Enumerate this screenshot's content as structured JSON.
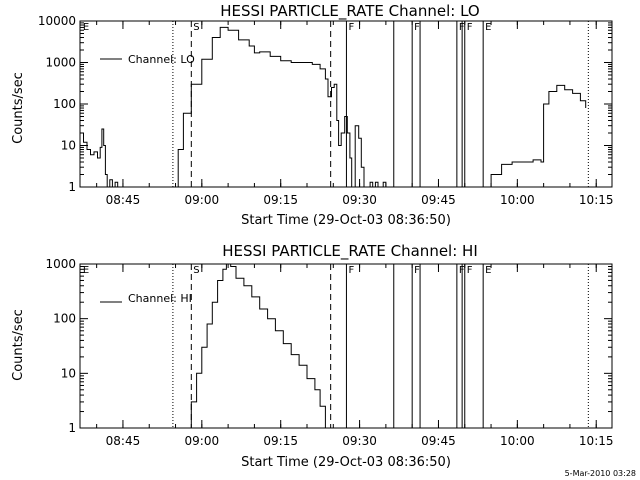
{
  "footer": {
    "stamp": "5-Mar-2010 03:28"
  },
  "chart_data": [
    {
      "type": "line",
      "title": "HESSI PARTICLE_RATE Channel: LO",
      "xlabel": "Start Time (29-Oct-03 08:36:50)",
      "ylabel": "Counts/sec",
      "yscale": "log",
      "xlim": [
        "08:36:50",
        "10:18:00"
      ],
      "ylim": [
        1,
        10000
      ],
      "x_ticks": [
        "08:45",
        "09:00",
        "09:15",
        "09:30",
        "09:45",
        "10:00",
        "10:15"
      ],
      "y_ticks": [
        "1",
        "10",
        "100",
        "1000",
        "10000"
      ],
      "legend": {
        "label": "Channel: LO",
        "placement": "top-left"
      },
      "markers": [
        {
          "label": "E",
          "time": "08:37:00",
          "style": "text"
        },
        {
          "label": "",
          "time": "08:54:30",
          "style": "dotted"
        },
        {
          "label": "S",
          "time": "08:58:00",
          "style": "dashed"
        },
        {
          "label": "",
          "time": "09:24:30",
          "style": "dashed"
        },
        {
          "label": "F",
          "time": "09:27:30",
          "style": "solid"
        },
        {
          "label": "",
          "time": "09:36:30",
          "style": "solid"
        },
        {
          "label": "F",
          "time": "09:40:00",
          "style": "solid"
        },
        {
          "label": "",
          "time": "09:41:30",
          "style": "solid"
        },
        {
          "label": "F",
          "time": "09:48:30",
          "style": "solid"
        },
        {
          "label": "",
          "time": "09:49:30",
          "style": "solid"
        },
        {
          "label": "F",
          "time": "09:50:00",
          "style": "solid"
        },
        {
          "label": "E",
          "time": "09:53:30",
          "style": "solid"
        },
        {
          "label": "",
          "time": "10:13:30",
          "style": "dotted"
        }
      ],
      "series": [
        {
          "values": [
            {
              "x": "08:36:50",
              "y": 20
            },
            {
              "x": "08:37:30",
              "y": 12
            },
            {
              "x": "08:38:10",
              "y": 8
            },
            {
              "x": "08:38:50",
              "y": 6
            },
            {
              "x": "08:39:30",
              "y": 7
            },
            {
              "x": "08:40:10",
              "y": 5
            },
            {
              "x": "08:40:40",
              "y": 9
            },
            {
              "x": "08:41:00",
              "y": 25
            },
            {
              "x": "08:41:20",
              "y": 10
            },
            {
              "x": "08:41:40",
              "y": 2
            },
            {
              "x": "08:42:00",
              "y": 1
            },
            {
              "x": "08:42:30",
              "y": 1.5
            },
            {
              "x": "08:43:00",
              "y": 1
            },
            {
              "x": "08:43:30",
              "y": 1.3
            },
            {
              "x": "08:44:00",
              "y": 1
            },
            {
              "x": "08:54:30",
              "y": 1
            },
            {
              "x": "08:55:30",
              "y": 8
            },
            {
              "x": "08:56:30",
              "y": 60
            },
            {
              "x": "08:58:00",
              "y": 300
            },
            {
              "x": "09:00:00",
              "y": 1200
            },
            {
              "x": "09:02:00",
              "y": 4000
            },
            {
              "x": "09:03:30",
              "y": 7000
            },
            {
              "x": "09:05:00",
              "y": 6000
            },
            {
              "x": "09:07:00",
              "y": 3500
            },
            {
              "x": "09:09:00",
              "y": 2500
            },
            {
              "x": "09:10:00",
              "y": 1700
            },
            {
              "x": "09:11:00",
              "y": 1800
            },
            {
              "x": "09:13:00",
              "y": 1400
            },
            {
              "x": "09:15:00",
              "y": 1100
            },
            {
              "x": "09:17:00",
              "y": 1000
            },
            {
              "x": "09:19:00",
              "y": 1000
            },
            {
              "x": "09:21:00",
              "y": 900
            },
            {
              "x": "09:22:30",
              "y": 700
            },
            {
              "x": "09:23:30",
              "y": 400
            },
            {
              "x": "09:24:00",
              "y": 150
            },
            {
              "x": "09:24:40",
              "y": 250
            },
            {
              "x": "09:25:10",
              "y": 300
            },
            {
              "x": "09:25:40",
              "y": 40
            },
            {
              "x": "09:26:00",
              "y": 10
            },
            {
              "x": "09:26:30",
              "y": 20
            },
            {
              "x": "09:27:10",
              "y": 50
            },
            {
              "x": "09:27:40",
              "y": 20
            },
            {
              "x": "09:28:10",
              "y": 5
            },
            {
              "x": "09:28:30",
              "y": 1
            },
            {
              "x": "09:29:10",
              "y": 30
            },
            {
              "x": "09:29:50",
              "y": 15
            },
            {
              "x": "09:30:20",
              "y": 3
            },
            {
              "x": "09:30:50",
              "y": 1
            },
            {
              "x": "09:32:00",
              "y": 1.3
            },
            {
              "x": "09:32:30",
              "y": 1
            },
            {
              "x": "09:33:00",
              "y": 1.3
            },
            {
              "x": "09:33:30",
              "y": 1
            },
            {
              "x": "09:34:30",
              "y": 1.3
            },
            {
              "x": "09:35:00",
              "y": 1
            },
            {
              "x": "09:54:00",
              "y": 1
            },
            {
              "x": "09:55:00",
              "y": 2
            },
            {
              "x": "09:57:00",
              "y": 3.5
            },
            {
              "x": "09:59:00",
              "y": 4
            },
            {
              "x": "10:01:00",
              "y": 4
            },
            {
              "x": "10:03:00",
              "y": 4.5
            },
            {
              "x": "10:04:30",
              "y": 4
            },
            {
              "x": "10:05:00",
              "y": 100
            },
            {
              "x": "10:06:00",
              "y": 200
            },
            {
              "x": "10:07:30",
              "y": 280
            },
            {
              "x": "10:09:00",
              "y": 220
            },
            {
              "x": "10:10:30",
              "y": 180
            },
            {
              "x": "10:12:00",
              "y": 120
            },
            {
              "x": "10:13:00",
              "y": 80
            }
          ]
        }
      ]
    },
    {
      "type": "line",
      "title": "HESSI PARTICLE_RATE Channel: HI",
      "xlabel": "Start Time (29-Oct-03 08:36:50)",
      "ylabel": "Counts/sec",
      "yscale": "log",
      "xlim": [
        "08:36:50",
        "10:18:00"
      ],
      "ylim": [
        1,
        1000
      ],
      "x_ticks": [
        "08:45",
        "09:00",
        "09:15",
        "09:30",
        "09:45",
        "10:00",
        "10:15"
      ],
      "y_ticks": [
        "1",
        "10",
        "100",
        "1000"
      ],
      "legend": {
        "label": "Channel: HI",
        "placement": "top-left"
      },
      "markers": [
        {
          "label": "E",
          "time": "08:37:00",
          "style": "text"
        },
        {
          "label": "",
          "time": "08:54:30",
          "style": "dotted"
        },
        {
          "label": "S",
          "time": "08:58:00",
          "style": "dashed"
        },
        {
          "label": "",
          "time": "09:24:30",
          "style": "dashed"
        },
        {
          "label": "F",
          "time": "09:27:30",
          "style": "solid"
        },
        {
          "label": "",
          "time": "09:36:30",
          "style": "solid"
        },
        {
          "label": "F",
          "time": "09:40:00",
          "style": "solid"
        },
        {
          "label": "",
          "time": "09:41:30",
          "style": "solid"
        },
        {
          "label": "F",
          "time": "09:48:30",
          "style": "solid"
        },
        {
          "label": "",
          "time": "09:49:30",
          "style": "solid"
        },
        {
          "label": "F",
          "time": "09:50:00",
          "style": "solid"
        },
        {
          "label": "E",
          "time": "09:53:30",
          "style": "solid"
        },
        {
          "label": "",
          "time": "10:13:30",
          "style": "dotted"
        }
      ],
      "series": [
        {
          "values": [
            {
              "x": "08:57:00",
              "y": 1
            },
            {
              "x": "08:58:00",
              "y": 3
            },
            {
              "x": "08:59:00",
              "y": 10
            },
            {
              "x": "09:00:00",
              "y": 30
            },
            {
              "x": "09:01:00",
              "y": 80
            },
            {
              "x": "09:02:00",
              "y": 200
            },
            {
              "x": "09:03:00",
              "y": 500
            },
            {
              "x": "09:04:00",
              "y": 800
            },
            {
              "x": "09:04:40",
              "y": 1000
            },
            {
              "x": "09:05:30",
              "y": 900
            },
            {
              "x": "09:06:30",
              "y": 550
            },
            {
              "x": "09:08:00",
              "y": 400
            },
            {
              "x": "09:09:30",
              "y": 250
            },
            {
              "x": "09:11:00",
              "y": 150
            },
            {
              "x": "09:12:30",
              "y": 100
            },
            {
              "x": "09:14:00",
              "y": 60
            },
            {
              "x": "09:15:30",
              "y": 35
            },
            {
              "x": "09:17:00",
              "y": 22
            },
            {
              "x": "09:18:30",
              "y": 14
            },
            {
              "x": "09:20:00",
              "y": 8
            },
            {
              "x": "09:21:30",
              "y": 5
            },
            {
              "x": "09:22:30",
              "y": 2.5
            },
            {
              "x": "09:23:30",
              "y": 1
            }
          ]
        }
      ]
    }
  ]
}
